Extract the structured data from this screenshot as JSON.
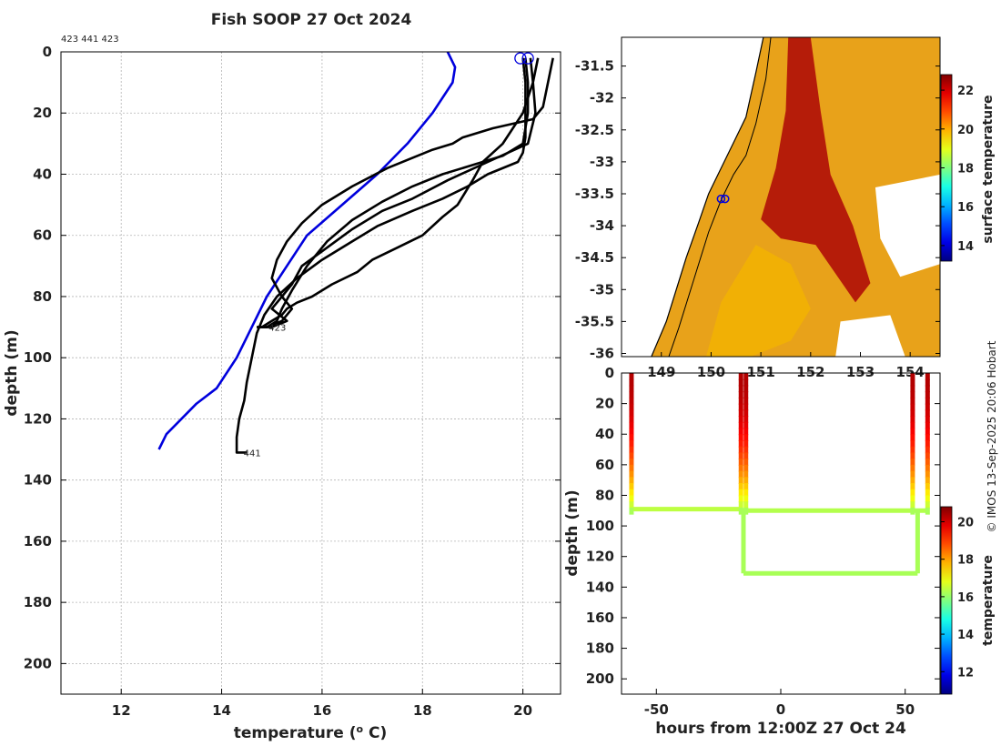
{
  "title": "Fish SOOP 27 Oct 2024",
  "ids_label": "423 441 423",
  "watermark": "© IMOS 13-Sep-2025 20:06 Hobart",
  "colors": {
    "profile": "#000000",
    "climatology": "#0000dd",
    "frame": "#000000",
    "grid": "#b4b4b4"
  },
  "chart_data": [
    {
      "name": "depth-profiles",
      "type": "line",
      "xlabel": "temperature (",
      "xlabel_sup": "o",
      "xlabel_suffix": " C)",
      "ylabel": "depth (m)",
      "xlim": [
        10.8,
        20.75
      ],
      "ylim": [
        210,
        0
      ],
      "xticks": [
        12,
        14,
        16,
        18,
        20
      ],
      "yticks": [
        0,
        20,
        40,
        60,
        80,
        100,
        120,
        140,
        160,
        180,
        200
      ],
      "grid": true,
      "series": [
        {
          "name": "climatology",
          "color": "#0000dd",
          "x": [
            18.5,
            18.65,
            18.6,
            18.2,
            17.7,
            17.1,
            16.4,
            15.7,
            15.3,
            14.9,
            14.6,
            14.3,
            13.9,
            13.5,
            13.2,
            12.9,
            12.75
          ],
          "y": [
            0,
            5,
            10,
            20,
            30,
            40,
            50,
            60,
            70,
            80,
            90,
            100,
            110,
            115,
            120,
            125,
            130
          ]
        },
        {
          "name": "profile-1",
          "color": "#000000",
          "x": [
            20.0,
            20.05,
            20.05,
            20.05,
            20.0,
            19.9,
            19.3,
            18.9,
            18.4,
            17.8,
            17.1,
            16.6,
            16.0,
            15.5,
            15.1,
            14.85,
            14.7,
            14.6,
            14.5,
            14.45,
            14.35,
            14.3,
            14.3,
            14.45,
            14.5
          ],
          "y": [
            2,
            10,
            20,
            28,
            33,
            36,
            40,
            44,
            48,
            52,
            57,
            62,
            68,
            74,
            80,
            86,
            92,
            100,
            108,
            114,
            120,
            126,
            131,
            131,
            131
          ]
        },
        {
          "name": "profile-2",
          "color": "#000000",
          "x": [
            20.05,
            20.1,
            20.1,
            20.0,
            19.6,
            19.0,
            18.4,
            17.8,
            17.2,
            16.6,
            16.1,
            15.7,
            15.4,
            15.2,
            15.1,
            14.9,
            14.75
          ],
          "y": [
            2,
            10,
            20,
            30,
            34,
            37,
            40,
            44,
            49,
            55,
            62,
            70,
            78,
            84,
            88,
            90,
            90
          ]
        },
        {
          "name": "profile-3",
          "color": "#000000",
          "x": [
            20.6,
            20.5,
            20.4,
            20.2,
            19.4,
            18.8,
            18.6,
            18.2,
            17.9,
            17.3,
            16.6,
            16.0,
            15.6,
            15.3,
            15.1,
            15.0,
            15.2,
            15.4,
            15.2,
            14.9,
            14.8
          ],
          "y": [
            2,
            10,
            18,
            22,
            25,
            28,
            30,
            32,
            34,
            38,
            44,
            50,
            56,
            62,
            68,
            74,
            80,
            84,
            88,
            90,
            90
          ]
        },
        {
          "name": "profile-4",
          "color": "#000000",
          "x": [
            20.15,
            20.2,
            20.25,
            20.1,
            19.3,
            18.5,
            17.8,
            17.2,
            16.6,
            16.1,
            15.6,
            15.4,
            15.2,
            15.0,
            15.3,
            15.0,
            14.7
          ],
          "y": [
            2,
            10,
            20,
            30,
            36,
            42,
            48,
            52,
            58,
            64,
            70,
            76,
            80,
            84,
            88,
            90,
            90
          ]
        },
        {
          "name": "profile-5",
          "color": "#000000",
          "x": [
            20.3,
            20.2,
            20.0,
            19.6,
            19.2,
            19.0,
            18.7,
            18.4,
            18.0,
            17.5,
            17.0,
            16.7,
            16.2,
            15.8,
            15.5,
            15.3,
            15.2,
            15.0,
            14.8,
            14.7
          ],
          "y": [
            2,
            10,
            20,
            30,
            36,
            42,
            50,
            54,
            60,
            64,
            68,
            72,
            76,
            80,
            82,
            84,
            86,
            88,
            90,
            90
          ]
        }
      ],
      "markers": [
        {
          "label": "",
          "x": 19.95,
          "y": 1.5
        },
        {
          "label": "",
          "x": 20.1,
          "y": 1.5
        }
      ],
      "annotations": [
        {
          "text": "423",
          "x": 14.9,
          "y": 90
        },
        {
          "text": "441",
          "x": 14.4,
          "y": 131
        }
      ]
    },
    {
      "name": "sst-map",
      "type": "heatmap",
      "xticks": [
        149,
        150,
        151,
        152,
        153,
        154
      ],
      "yticks": [
        -31.5,
        -32,
        -32.5,
        -33,
        -33.5,
        -34,
        -34.5,
        -35,
        -35.5,
        -36
      ],
      "xlim": [
        148.2,
        154.6
      ],
      "ylim": [
        -36.05,
        -31.05
      ],
      "colorbar_label": "surface temperature",
      "colorbar_ticks": [
        14,
        16,
        18,
        20,
        22
      ],
      "colorbar_range": [
        13.2,
        22.8
      ],
      "coast": [
        [
          151.05,
          -31.05
        ],
        [
          150.9,
          -31.6
        ],
        [
          150.7,
          -32.3
        ],
        [
          150.45,
          -32.7
        ],
        [
          150.2,
          -33.1
        ],
        [
          149.95,
          -33.5
        ],
        [
          149.75,
          -33.95
        ],
        [
          149.5,
          -34.5
        ],
        [
          149.3,
          -35.0
        ],
        [
          149.1,
          -35.5
        ],
        [
          148.8,
          -36.05
        ]
      ],
      "shelf_line": [
        [
          151.2,
          -31.05
        ],
        [
          151.1,
          -31.7
        ],
        [
          150.9,
          -32.4
        ],
        [
          150.7,
          -32.9
        ],
        [
          150.45,
          -33.2
        ],
        [
          150.2,
          -33.6
        ],
        [
          149.95,
          -34.1
        ],
        [
          149.75,
          -34.6
        ],
        [
          149.55,
          -35.1
        ],
        [
          149.35,
          -35.6
        ],
        [
          149.15,
          -36.05
        ]
      ],
      "markers": [
        [
          150.2,
          -33.58
        ],
        [
          150.28,
          -33.58
        ]
      ]
    },
    {
      "name": "depth-time",
      "type": "scatter",
      "xlabel": "hours from 12:00Z 27 Oct 24",
      "ylabel": "depth (m)",
      "xlim": [
        -64,
        64
      ],
      "ylim": [
        210,
        0
      ],
      "xticks": [
        -50,
        0,
        50
      ],
      "yticks": [
        0,
        20,
        40,
        60,
        80,
        100,
        120,
        140,
        160,
        180,
        200
      ],
      "colorbar_label": "temperature",
      "colorbar_ticks": [
        12,
        14,
        16,
        18,
        20
      ],
      "colorbar_range": [
        10.8,
        20.8
      ],
      "tracks": [
        {
          "x": [
            -60,
            -16,
            -16,
            -60
          ],
          "bottom": 89
        },
        {
          "x": [
            -16,
            -14,
            -14,
            -16
          ],
          "bottom": 89
        },
        {
          "x": [
            -15,
            55,
            55,
            -15
          ],
          "bottom": 131
        },
        {
          "x": [
            53,
            59,
            59,
            53
          ],
          "bottom": 89
        }
      ],
      "cast_times": [
        -60,
        -16,
        -14,
        53,
        59
      ],
      "cast_temps_top": 20.3,
      "cast_temps_bottom": 16.2,
      "legs": [
        {
          "x0": -60,
          "x1": -16,
          "depth": 89,
          "temp": 16.4
        },
        {
          "x0": -15,
          "x1": 55,
          "depth": 131,
          "temp": 16.2
        },
        {
          "x0": -16,
          "x1": 59,
          "depth": 90,
          "temp": 16.3
        }
      ],
      "bottom_legs": [
        {
          "x": -15,
          "from": 89,
          "to": 131
        },
        {
          "x": 55,
          "from": 89,
          "to": 131
        }
      ]
    }
  ]
}
